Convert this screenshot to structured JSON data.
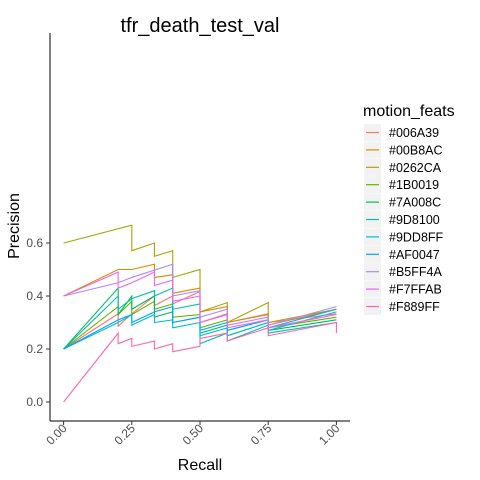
{
  "chart_data": {
    "type": "line",
    "title": "tfr_death_test_val",
    "xlabel": "Recall",
    "ylabel": "Precision",
    "xlim": [
      0,
      1
    ],
    "ylim": [
      0,
      0.7
    ],
    "x_ticks": [
      0,
      0.25,
      0.5,
      0.75,
      1
    ],
    "x_tick_labels": [
      "0.00",
      "0.25",
      "0.50",
      "0.75",
      "1.00"
    ],
    "y_ticks": [
      0,
      0.2,
      0.4,
      0.6
    ],
    "y_tick_labels": [
      "0.0",
      "0.2",
      "0.4",
      "0.6"
    ],
    "grid": false,
    "legend_position": "right",
    "legend_title": "motion_feats",
    "series": [
      {
        "name": "#006A39",
        "color": "#F8766D",
        "points": [
          [
            0,
            0.2
          ],
          [
            0.2,
            0.333
          ],
          [
            0.2,
            0.286
          ],
          [
            0.25,
            0.333
          ],
          [
            0.333,
            0.4
          ],
          [
            0.333,
            0.364
          ],
          [
            0.4,
            0.4
          ],
          [
            0.4,
            0.37
          ],
          [
            0.5,
            0.417
          ],
          [
            0.5,
            0.3
          ],
          [
            0.6,
            0.333
          ],
          [
            0.6,
            0.3
          ],
          [
            0.75,
            0.333
          ],
          [
            0.75,
            0.3
          ],
          [
            1,
            0.333
          ]
        ]
      },
      {
        "name": "#00B8AC",
        "color": "#DB8E00",
        "points": [
          [
            0,
            0.4
          ],
          [
            0.2,
            0.5
          ],
          [
            0.25,
            0.5
          ],
          [
            0.333,
            0.52
          ],
          [
            0.333,
            0.47
          ],
          [
            0.4,
            0.48
          ],
          [
            0.4,
            0.41
          ],
          [
            0.5,
            0.43
          ],
          [
            0.5,
            0.34
          ],
          [
            0.6,
            0.36
          ],
          [
            0.6,
            0.3
          ],
          [
            0.75,
            0.33
          ],
          [
            0.75,
            0.29
          ],
          [
            1,
            0.35
          ]
        ]
      },
      {
        "name": "#0262CA",
        "color": "#AEA200",
        "points": [
          [
            0,
            0.6
          ],
          [
            0.25,
            0.667
          ],
          [
            0.25,
            0.571
          ],
          [
            0.333,
            0.6
          ],
          [
            0.333,
            0.55
          ],
          [
            0.4,
            0.571
          ],
          [
            0.4,
            0.47
          ],
          [
            0.5,
            0.5
          ],
          [
            0.5,
            0.34
          ],
          [
            0.6,
            0.375
          ],
          [
            0.6,
            0.3
          ],
          [
            0.75,
            0.375
          ],
          [
            0.75,
            0.3
          ],
          [
            1,
            0.35
          ]
        ]
      },
      {
        "name": "#1B0019",
        "color": "#64B200",
        "points": [
          [
            0,
            0.2
          ],
          [
            0.2,
            0.36
          ],
          [
            0.2,
            0.33
          ],
          [
            0.25,
            0.38
          ],
          [
            0.25,
            0.33
          ],
          [
            0.333,
            0.38
          ],
          [
            0.333,
            0.35
          ],
          [
            0.4,
            0.37
          ],
          [
            0.4,
            0.32
          ],
          [
            0.5,
            0.33
          ],
          [
            0.5,
            0.28
          ],
          [
            0.6,
            0.31
          ],
          [
            0.6,
            0.27
          ],
          [
            0.75,
            0.31
          ],
          [
            0.75,
            0.28
          ],
          [
            1,
            0.32
          ]
        ]
      },
      {
        "name": "#7A008C",
        "color": "#00BD5C",
        "points": [
          [
            0,
            0.2
          ],
          [
            0.2,
            0.43
          ],
          [
            0.2,
            0.33
          ],
          [
            0.25,
            0.4
          ],
          [
            0.25,
            0.35
          ],
          [
            0.333,
            0.4
          ],
          [
            0.333,
            0.32
          ],
          [
            0.4,
            0.34
          ],
          [
            0.4,
            0.3
          ],
          [
            0.5,
            0.32
          ],
          [
            0.5,
            0.26
          ],
          [
            0.6,
            0.29
          ],
          [
            0.6,
            0.25
          ],
          [
            0.75,
            0.3
          ],
          [
            0.75,
            0.27
          ],
          [
            1,
            0.31
          ]
        ]
      },
      {
        "name": "#9D8100",
        "color": "#00C1A7",
        "points": [
          [
            0,
            0.2
          ],
          [
            0.2,
            0.4
          ],
          [
            0.2,
            0.35
          ],
          [
            0.25,
            0.39
          ],
          [
            0.333,
            0.42
          ],
          [
            0.333,
            0.4
          ],
          [
            0.4,
            0.43
          ],
          [
            0.4,
            0.35
          ],
          [
            0.5,
            0.37
          ],
          [
            0.5,
            0.22
          ],
          [
            0.6,
            0.26
          ],
          [
            0.6,
            0.23
          ],
          [
            0.75,
            0.29
          ],
          [
            0.75,
            0.26
          ],
          [
            1,
            0.3
          ]
        ]
      },
      {
        "name": "#9DD8FF",
        "color": "#00BADE",
        "points": [
          [
            0,
            0.2
          ],
          [
            0.2,
            0.3
          ],
          [
            0.25,
            0.33
          ],
          [
            0.25,
            0.29
          ],
          [
            0.333,
            0.33
          ],
          [
            0.333,
            0.3
          ],
          [
            0.4,
            0.31
          ],
          [
            0.4,
            0.28
          ],
          [
            0.5,
            0.3
          ],
          [
            0.5,
            0.25
          ],
          [
            0.6,
            0.28
          ],
          [
            0.6,
            0.25
          ],
          [
            0.75,
            0.3
          ],
          [
            0.75,
            0.27
          ],
          [
            1,
            0.34
          ]
        ]
      },
      {
        "name": "#AF0047",
        "color": "#00A6FF",
        "points": [
          [
            0,
            0.2
          ],
          [
            0.2,
            0.31
          ],
          [
            0.25,
            0.33
          ],
          [
            0.25,
            0.3
          ],
          [
            0.333,
            0.34
          ],
          [
            0.4,
            0.36
          ],
          [
            0.4,
            0.3
          ],
          [
            0.5,
            0.32
          ],
          [
            0.5,
            0.27
          ],
          [
            0.6,
            0.3
          ],
          [
            0.6,
            0.27
          ],
          [
            0.75,
            0.31
          ],
          [
            0.75,
            0.28
          ],
          [
            1,
            0.35
          ]
        ]
      },
      {
        "name": "#B5FF4A",
        "color": "#B385FF",
        "points": [
          [
            0,
            0.4
          ],
          [
            0.2,
            0.45
          ],
          [
            0.25,
            0.47
          ],
          [
            0.4,
            0.52
          ],
          [
            0.4,
            0.4
          ],
          [
            0.5,
            0.42
          ],
          [
            0.5,
            0.32
          ],
          [
            0.6,
            0.35
          ],
          [
            0.6,
            0.29
          ],
          [
            0.75,
            0.32
          ],
          [
            0.75,
            0.29
          ],
          [
            1,
            0.36
          ]
        ]
      },
      {
        "name": "#F7FFAB",
        "color": "#EF67EB",
        "points": [
          [
            0,
            0.4
          ],
          [
            0.2,
            0.49
          ],
          [
            0.2,
            0.43
          ],
          [
            0.25,
            0.45
          ],
          [
            0.333,
            0.49
          ],
          [
            0.333,
            0.44
          ],
          [
            0.4,
            0.46
          ],
          [
            0.4,
            0.38
          ],
          [
            0.5,
            0.4
          ],
          [
            0.5,
            0.3
          ],
          [
            0.6,
            0.33
          ],
          [
            0.6,
            0.28
          ],
          [
            0.75,
            0.31
          ],
          [
            0.75,
            0.28
          ],
          [
            1,
            0.33
          ]
        ]
      },
      {
        "name": "#F889FF",
        "color": "#FF63B6",
        "points": [
          [
            0,
            0
          ],
          [
            0.2,
            0.26
          ],
          [
            0.2,
            0.22
          ],
          [
            0.25,
            0.24
          ],
          [
            0.25,
            0.21
          ],
          [
            0.333,
            0.23
          ],
          [
            0.333,
            0.2
          ],
          [
            0.4,
            0.22
          ],
          [
            0.4,
            0.19
          ],
          [
            0.5,
            0.21
          ],
          [
            0.5,
            0.24
          ],
          [
            0.6,
            0.26
          ],
          [
            0.6,
            0.23
          ],
          [
            0.75,
            0.28
          ],
          [
            0.75,
            0.25
          ],
          [
            1,
            0.3
          ],
          [
            1,
            0.26
          ]
        ]
      }
    ]
  }
}
